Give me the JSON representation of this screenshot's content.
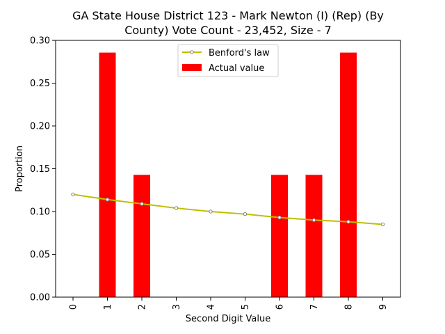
{
  "chart_data": {
    "type": "bar",
    "title_line1": "GA State House District 123 - Mark Newton (I) (Rep) (By",
    "title_line2": "County) Vote Count - 23,452, Size - 7",
    "xlabel": "Second Digit Value",
    "ylabel": "Proportion",
    "categories": [
      "0",
      "1",
      "2",
      "3",
      "4",
      "5",
      "6",
      "7",
      "8",
      "9"
    ],
    "ylim": [
      0,
      0.3
    ],
    "yticks": [
      "0.00",
      "0.05",
      "0.10",
      "0.15",
      "0.20",
      "0.25",
      "0.30"
    ],
    "legend_position": "upper center",
    "series": [
      {
        "name": "Benford's law",
        "kind": "line",
        "color": "#bfbf00",
        "marker_color": "#808080",
        "values": [
          0.12,
          0.114,
          0.109,
          0.104,
          0.1,
          0.097,
          0.093,
          0.09,
          0.088,
          0.085
        ]
      },
      {
        "name": "Actual value",
        "kind": "bar",
        "color": "#ff0000",
        "values": [
          0,
          0.2857,
          0.1429,
          0,
          0,
          0,
          0.1429,
          0.1429,
          0.2857,
          0
        ]
      }
    ]
  }
}
